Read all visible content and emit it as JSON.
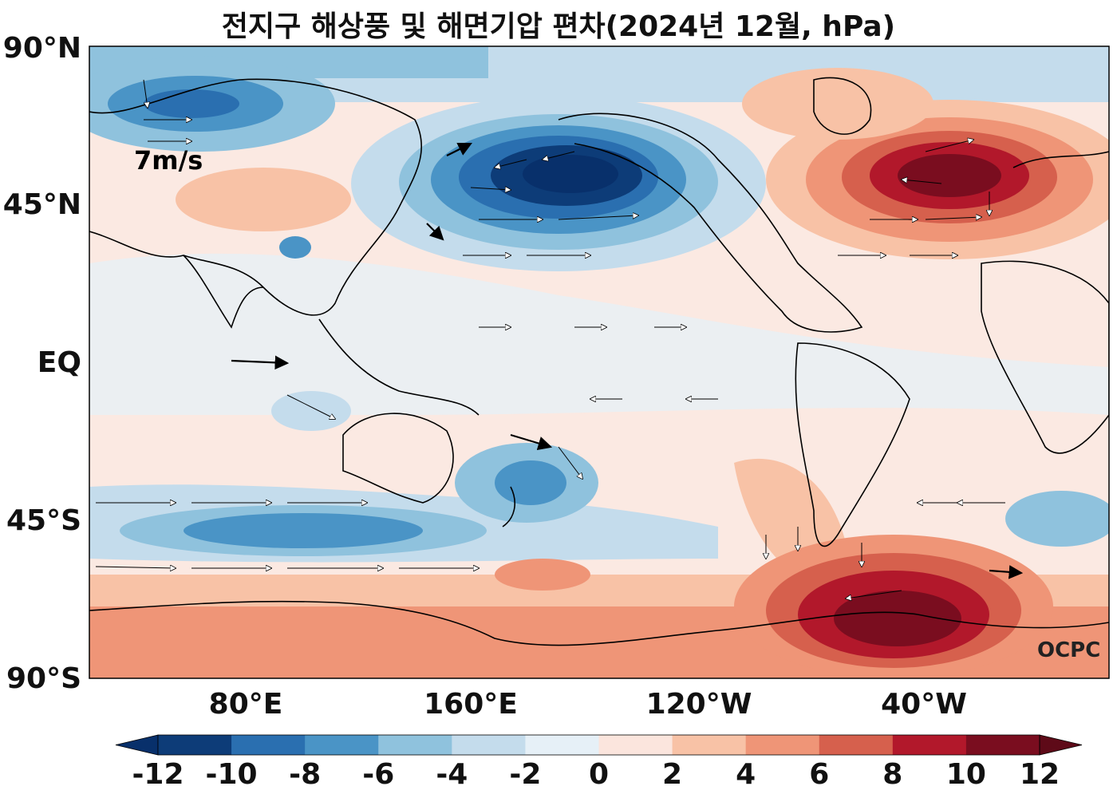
{
  "title": "전지구 해상풍 및 해면기압 편차(2024년 12월, hPa)",
  "lat_labels": [
    "90°N",
    "45°N",
    "EQ",
    "45°S",
    "90°S"
  ],
  "lon_labels": [
    "80°E",
    "160°E",
    "120°W",
    "40°W"
  ],
  "reference_arrow_label": "7m/s",
  "watermark": "OCPC",
  "colorbar": {
    "ticks": [
      "-12",
      "-10",
      "-8",
      "-6",
      "-4",
      "-2",
      "0",
      "2",
      "4",
      "6",
      "8",
      "10",
      "12"
    ],
    "colors": [
      "#08306b",
      "#0d3c78",
      "#2a6fb0",
      "#4a94c6",
      "#8fc2dd",
      "#c4dcec",
      "#e6f0f7",
      "#fbe5dd",
      "#f8c2a6",
      "#ef9577",
      "#d6604d",
      "#b2182b",
      "#7a0d1f",
      "#5e0a18"
    ]
  },
  "colors": {
    "land_line": "#000000",
    "neutral_positive": "#fbe9e2",
    "neutral_negative": "#e6f0f7"
  }
}
